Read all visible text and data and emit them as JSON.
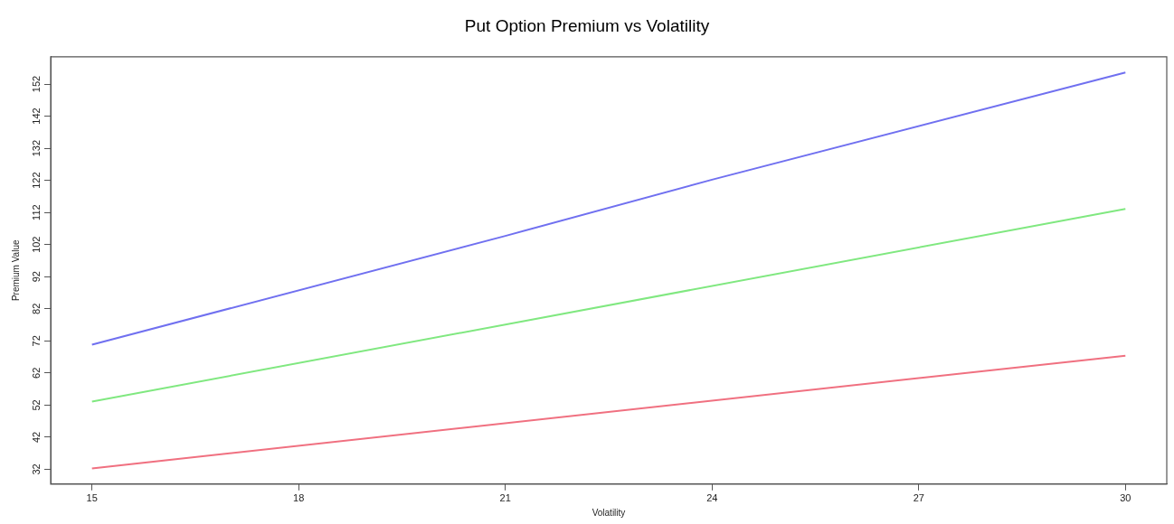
{
  "chart_data": {
    "type": "line",
    "title": "Put Option Premium vs Volatility",
    "xlabel": "Volatility",
    "ylabel": "Premium Value",
    "xlim": [
      14.4,
      30.6
    ],
    "xticks": [
      15,
      18,
      21,
      24,
      27,
      30
    ],
    "ylim": [
      27.4,
      160.5
    ],
    "yticks": [
      32,
      42,
      52,
      62,
      72,
      82,
      92,
      102,
      112,
      122,
      132,
      142,
      152
    ],
    "grid": false,
    "legend": false,
    "marker": "none",
    "line_style": "solid",
    "series": [
      {
        "color": "#7070f0",
        "x": [
          15,
          21,
          24,
          30
        ],
        "values": [
          70.8,
          104.7,
          122.2,
          155.6
        ]
      },
      {
        "color": "#80e880",
        "x": [
          15,
          30
        ],
        "values": [
          53.1,
          113.1
        ]
      },
      {
        "color": "#f07080",
        "x": [
          15,
          30
        ],
        "values": [
          32.3,
          67.4
        ]
      }
    ]
  }
}
